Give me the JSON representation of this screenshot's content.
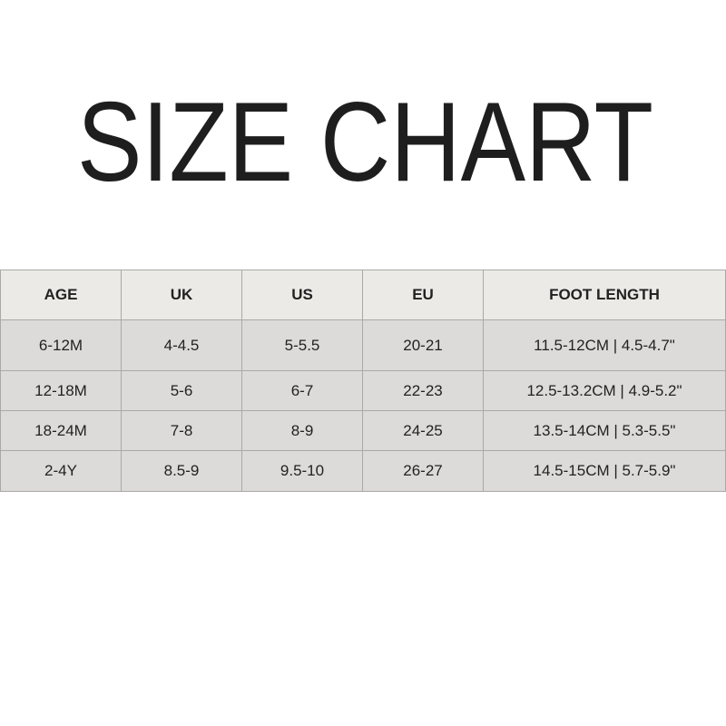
{
  "title": "SIZE CHART",
  "table": {
    "headers": [
      "AGE",
      "UK",
      "US",
      "EU",
      "FOOT LENGTH"
    ],
    "rows": [
      [
        "6-12M",
        "4-4.5",
        "5-5.5",
        "20-21",
        "11.5-12CM | 4.5-4.7\""
      ],
      [
        "12-18M",
        "5-6",
        "6-7",
        "22-23",
        "12.5-13.2CM | 4.9-5.2\""
      ],
      [
        "18-24M",
        "7-8",
        "8-9",
        "24-25",
        "13.5-14CM | 5.3-5.5\""
      ],
      [
        "2-4Y",
        "8.5-9",
        "9.5-10",
        "26-27",
        "14.5-15CM | 5.7-5.9\""
      ]
    ]
  },
  "colors": {
    "header_bg": "#ebeae6",
    "row_bg": "#dcdbd9",
    "border": "#a9a9a9",
    "text": "#1e1e1e"
  }
}
